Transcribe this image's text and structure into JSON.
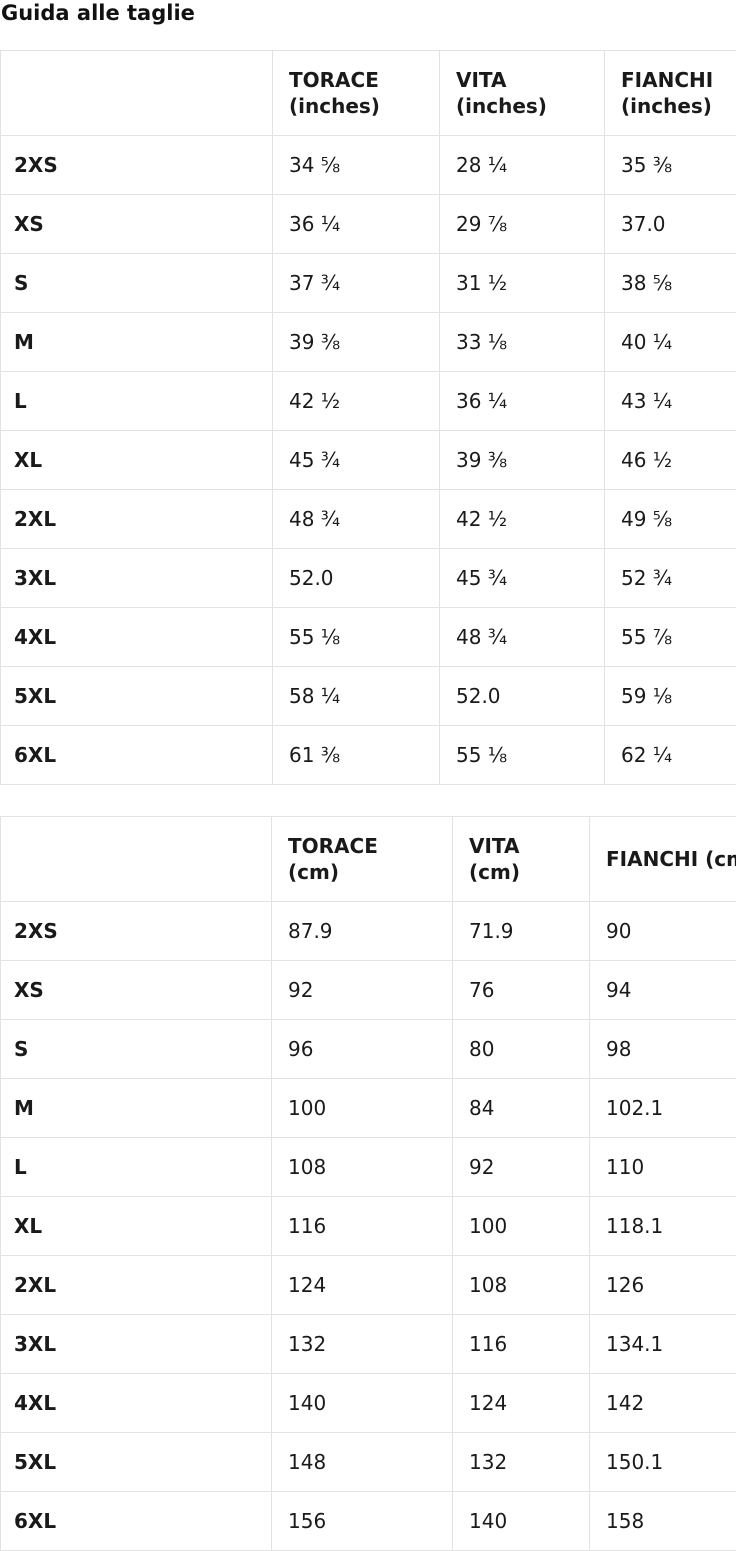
{
  "title": "Guida alle taglie",
  "colors": {
    "border": "#e2e2e2",
    "text": "#1a1a1a",
    "background": "#ffffff"
  },
  "tables": [
    {
      "id": "inches",
      "columns": [
        {
          "line1": "",
          "line2": ""
        },
        {
          "line1": "TORACE",
          "line2": "(inches)"
        },
        {
          "line1": "VITA",
          "line2": "(inches)"
        },
        {
          "line1": "FIANCHI",
          "line2": "(inches)"
        }
      ],
      "rows": [
        {
          "size": "2XS",
          "values": [
            "34 ⅝",
            "28 ¼",
            "35 ⅜"
          ]
        },
        {
          "size": "XS",
          "values": [
            "36 ¼",
            "29 ⅞",
            "37.0"
          ]
        },
        {
          "size": "S",
          "values": [
            "37 ¾",
            "31 ½",
            "38 ⅝"
          ]
        },
        {
          "size": "M",
          "values": [
            "39 ⅜",
            "33 ⅛",
            "40 ¼"
          ]
        },
        {
          "size": "L",
          "values": [
            "42 ½",
            "36 ¼",
            "43 ¼"
          ]
        },
        {
          "size": "XL",
          "values": [
            "45 ¾",
            "39 ⅜",
            "46 ½"
          ]
        },
        {
          "size": "2XL",
          "values": [
            "48 ¾",
            "42 ½",
            "49 ⅝"
          ]
        },
        {
          "size": "3XL",
          "values": [
            "52.0",
            "45 ¾",
            "52 ¾"
          ]
        },
        {
          "size": "4XL",
          "values": [
            "55 ⅛",
            "48 ¾",
            "55 ⅞"
          ]
        },
        {
          "size": "5XL",
          "values": [
            "58 ¼",
            "52.0",
            "59 ⅛"
          ]
        },
        {
          "size": "6XL",
          "values": [
            "61 ⅜",
            "55 ⅛",
            "62 ¼"
          ]
        }
      ]
    },
    {
      "id": "cm",
      "columns": [
        {
          "line1": "",
          "line2": ""
        },
        {
          "line1": "TORACE",
          "line2": "(cm)"
        },
        {
          "line1": "VITA",
          "line2": "(cm)"
        },
        {
          "line1": "FIANCHI (cm)",
          "line2": ""
        }
      ],
      "rows": [
        {
          "size": "2XS",
          "values": [
            "87.9",
            "71.9",
            "90"
          ]
        },
        {
          "size": "XS",
          "values": [
            "92",
            "76",
            "94"
          ]
        },
        {
          "size": "S",
          "values": [
            "96",
            "80",
            "98"
          ]
        },
        {
          "size": "M",
          "values": [
            "100",
            "84",
            "102.1"
          ]
        },
        {
          "size": "L",
          "values": [
            "108",
            "92",
            "110"
          ]
        },
        {
          "size": "XL",
          "values": [
            "116",
            "100",
            "118.1"
          ]
        },
        {
          "size": "2XL",
          "values": [
            "124",
            "108",
            "126"
          ]
        },
        {
          "size": "3XL",
          "values": [
            "132",
            "116",
            "134.1"
          ]
        },
        {
          "size": "4XL",
          "values": [
            "140",
            "124",
            "142"
          ]
        },
        {
          "size": "5XL",
          "values": [
            "148",
            "132",
            "150.1"
          ]
        },
        {
          "size": "6XL",
          "values": [
            "156",
            "140",
            "158"
          ]
        }
      ]
    }
  ]
}
